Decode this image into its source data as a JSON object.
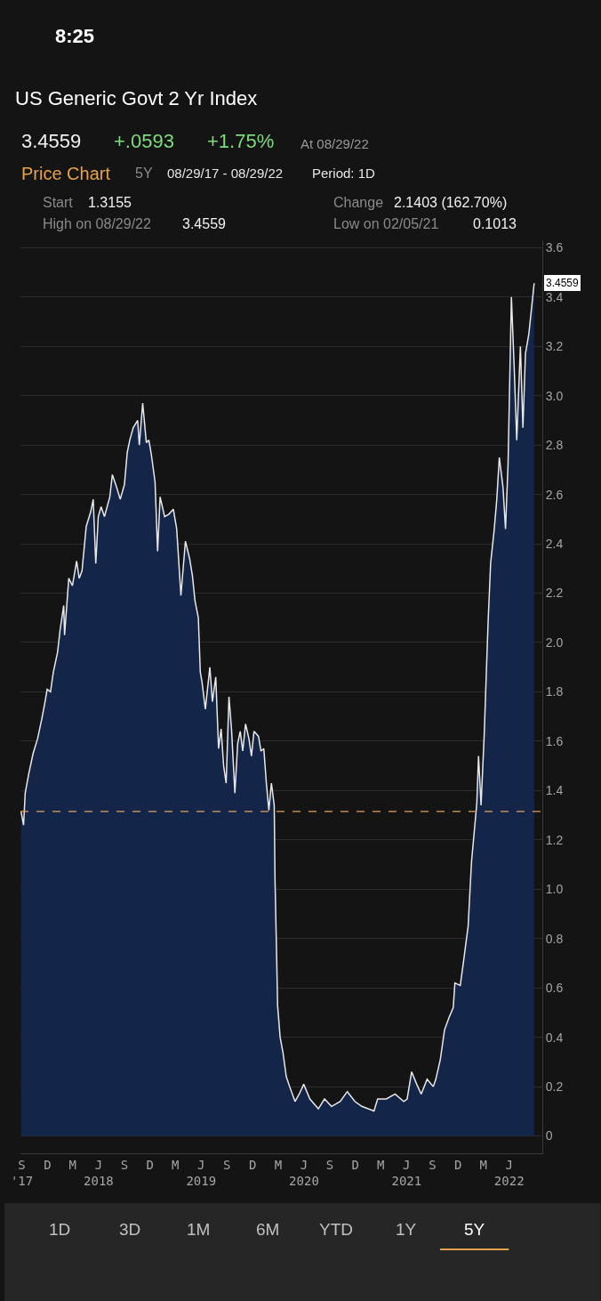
{
  "chart_data": {
    "type": "area",
    "title": "US Generic Govt 2 Yr Index",
    "annotations": [
      "8:25",
      "3.4559",
      "+.0593",
      "+1.75%",
      "At 08/29/22",
      "Price Chart",
      "5Y",
      "08/29/17 - 08/29/22",
      "Period: 1D",
      "Start",
      "1.3155",
      "Change",
      "2.1403 (162.70%)",
      "High on 08/29/22",
      "3.4559",
      "Low on 02/05/21",
      "0.1013",
      "1D",
      "3D",
      "1M",
      "6M",
      "YTD",
      "1Y",
      "5Y",
      {
        "text": "3.4559",
        "x": "2022-08-29",
        "y": 3.4559
      }
    ],
    "x": [
      "2017-08-29",
      "2017-09-07",
      "2017-09-13",
      "2017-09-26",
      "2017-10-11",
      "2017-10-27",
      "2017-11-11",
      "2017-11-21",
      "2017-11-30",
      "2017-12-12",
      "2017-12-22",
      "2018-01-06",
      "2018-01-15",
      "2018-01-28",
      "2018-01-31",
      "2018-02-15",
      "2018-02-28",
      "2018-03-15",
      "2018-03-24",
      "2018-04-03",
      "2018-04-18",
      "2018-05-04",
      "2018-05-13",
      "2018-05-22",
      "2018-05-31",
      "2018-06-10",
      "2018-06-22",
      "2018-07-11",
      "2018-07-20",
      "2018-08-04",
      "2018-08-17",
      "2018-09-01",
      "2018-09-11",
      "2018-09-20",
      "2018-10-02",
      "2018-10-18",
      "2018-10-24",
      "2018-11-05",
      "2018-11-18",
      "2018-11-27",
      "2018-12-06",
      "2018-12-19",
      "2018-12-28",
      "2019-01-06",
      "2019-01-22",
      "2019-02-06",
      "2019-02-22",
      "2019-03-06",
      "2019-03-21",
      "2019-04-06",
      "2019-04-21",
      "2019-05-01",
      "2019-05-10",
      "2019-05-22",
      "2019-05-29",
      "2019-06-04",
      "2019-06-16",
      "2019-07-02",
      "2019-07-11",
      "2019-07-23",
      "2019-08-02",
      "2019-08-11",
      "2019-08-20",
      "2019-08-29",
      "2019-09-08",
      "2019-09-17",
      "2019-09-29",
      "2019-10-09",
      "2019-10-18",
      "2019-10-27",
      "2019-11-06",
      "2019-11-18",
      "2019-11-27",
      "2019-12-06",
      "2019-12-22",
      "2019-12-31",
      "2020-01-10",
      "2020-01-19",
      "2020-01-28",
      "2020-02-06",
      "2020-02-16",
      "2020-02-19",
      "2020-02-25",
      "2020-02-28",
      "2020-03-08",
      "2020-03-18",
      "2020-03-30",
      "2020-04-11",
      "2020-04-30",
      "2020-05-15",
      "2020-05-31",
      "2020-06-22",
      "2020-07-22",
      "2020-08-13",
      "2020-09-07",
      "2020-10-08",
      "2020-11-02",
      "2020-11-29",
      "2020-12-24",
      "2021-02-05",
      "2021-02-18",
      "2021-03-21",
      "2021-04-21",
      "2021-05-22",
      "2021-06-03",
      "2021-06-19",
      "2021-07-07",
      "2021-07-23",
      "2021-08-13",
      "2021-09-04",
      "2021-09-13",
      "2021-09-29",
      "2021-10-14",
      "2021-10-30",
      "2021-11-14",
      "2021-11-20",
      "2021-12-09",
      "2021-12-21",
      "2022-01-06",
      "2022-01-18",
      "2022-02-06",
      "2022-02-12",
      "2022-02-21",
      "2022-03-04",
      "2022-03-18",
      "2022-03-27",
      "2022-04-09",
      "2022-04-18",
      "2022-04-27",
      "2022-05-10",
      "2022-05-19",
      "2022-05-28",
      "2022-06-09",
      "2022-06-19",
      "2022-06-28",
      "2022-07-11",
      "2022-07-20",
      "2022-07-29",
      "2022-08-10",
      "2022-08-29"
    ],
    "series": [
      {
        "color": "#14254a",
        "values": [
          1.3155,
          1.26,
          1.39,
          1.47,
          1.55,
          1.61,
          1.69,
          1.75,
          1.81,
          1.8,
          1.88,
          1.96,
          2.05,
          2.15,
          2.03,
          2.26,
          2.23,
          2.33,
          2.26,
          2.29,
          2.47,
          2.53,
          2.58,
          2.32,
          2.51,
          2.55,
          2.51,
          2.59,
          2.68,
          2.63,
          2.58,
          2.64,
          2.77,
          2.82,
          2.87,
          2.9,
          2.8,
          2.97,
          2.81,
          2.82,
          2.76,
          2.65,
          2.37,
          2.59,
          2.51,
          2.52,
          2.54,
          2.46,
          2.19,
          2.41,
          2.34,
          2.27,
          2.17,
          2.1,
          1.88,
          1.84,
          1.73,
          1.9,
          1.76,
          1.86,
          1.57,
          1.65,
          1.5,
          1.43,
          1.78,
          1.65,
          1.39,
          1.59,
          1.64,
          1.56,
          1.67,
          1.61,
          1.54,
          1.64,
          1.62,
          1.56,
          1.57,
          1.43,
          1.32,
          1.43,
          1.34,
          1.03,
          0.71,
          0.53,
          0.4,
          0.34,
          0.24,
          0.2,
          0.14,
          0.17,
          0.21,
          0.15,
          0.11,
          0.15,
          0.12,
          0.14,
          0.18,
          0.14,
          0.12,
          0.1013,
          0.15,
          0.15,
          0.17,
          0.14,
          0.15,
          0.26,
          0.21,
          0.17,
          0.23,
          0.2,
          0.23,
          0.31,
          0.43,
          0.48,
          0.52,
          0.62,
          0.61,
          0.71,
          0.85,
          1.11,
          1.35,
          1.54,
          1.34,
          1.62,
          2.08,
          2.32,
          2.46,
          2.58,
          2.75,
          2.63,
          2.46,
          2.72,
          3.4,
          3.11,
          2.82,
          3.2,
          2.87,
          3.17,
          3.25,
          3.4559
        ]
      }
    ],
    "xlim": [
      "2017-08-27",
      "2022-09-27"
    ],
    "xticks": [
      {
        "value": "2017-09-01",
        "label": "S\n'17"
      },
      {
        "value": "2017-12-01",
        "label": "D"
      },
      {
        "value": "2018-03-01",
        "label": "M"
      },
      {
        "value": "2018-06-01",
        "label": "J\n2018"
      },
      {
        "value": "2018-09-01",
        "label": "S"
      },
      {
        "value": "2018-12-01",
        "label": "D"
      },
      {
        "value": "2019-03-01",
        "label": "M"
      },
      {
        "value": "2019-06-01",
        "label": "J\n2019"
      },
      {
        "value": "2019-09-01",
        "label": "S"
      },
      {
        "value": "2019-12-01",
        "label": "D"
      },
      {
        "value": "2020-03-01",
        "label": "M"
      },
      {
        "value": "2020-06-01",
        "label": "J\n2020"
      },
      {
        "value": "2020-09-01",
        "label": "S"
      },
      {
        "value": "2020-12-01",
        "label": "D"
      },
      {
        "value": "2021-03-01",
        "label": "M"
      },
      {
        "value": "2021-06-01",
        "label": "J\n2021"
      },
      {
        "value": "2021-09-01",
        "label": "S"
      },
      {
        "value": "2021-12-01",
        "label": "D"
      },
      {
        "value": "2022-03-01",
        "label": "M"
      },
      {
        "value": "2022-06-01",
        "label": "J\n2022"
      }
    ],
    "ylim": [
      -0.07,
      3.63
    ],
    "yticks": [
      0,
      0.2,
      0.4,
      0.6,
      0.8,
      {
        "value": 1,
        "label": "1.0"
      },
      1.2,
      1.4,
      1.6,
      1.8,
      {
        "value": 2,
        "label": "2.0"
      },
      2.2,
      2.4,
      2.6,
      2.8,
      {
        "value": 3,
        "label": "3.0"
      },
      3.2,
      3.4,
      3.6
    ],
    "grid": "y",
    "ref_lines": [
      {
        "axis": "y",
        "value": 1.3155,
        "color": "#e8a24a",
        "line_style": "dashed"
      }
    ]
  }
}
